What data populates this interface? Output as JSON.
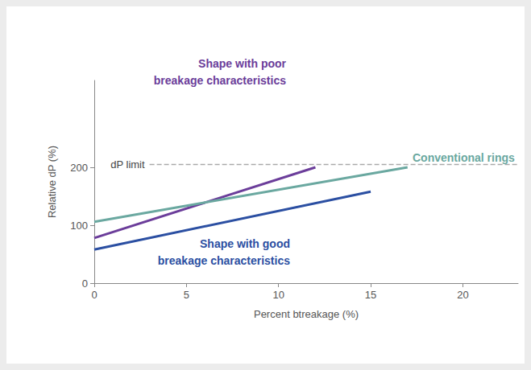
{
  "chart_data": {
    "type": "line",
    "x_label": "Percent btreakage (%)",
    "y_label": "Relative dP (%)",
    "xlim": [
      0,
      23
    ],
    "xticks": [
      0,
      5,
      10,
      15,
      20
    ],
    "ylim": [
      0,
      350
    ],
    "yticks": [
      0,
      100,
      200
    ],
    "grid": false,
    "series": [
      {
        "name": "Shape with poor breakage characteristics",
        "color": "#6b3d9a",
        "line_style": "solid",
        "x": [
          0,
          12
        ],
        "values": [
          78,
          200
        ]
      },
      {
        "name": "Conventional rings",
        "color": "#6aa8a0",
        "line_style": "solid",
        "x": [
          0,
          17
        ],
        "values": [
          106,
          200
        ]
      },
      {
        "name": "Shape with good breakage characteristics",
        "color": "#2b4fa2",
        "line_style": "solid",
        "x": [
          0,
          15
        ],
        "values": [
          58,
          158
        ]
      },
      {
        "name": "dP limit",
        "color": "#aaaaaa",
        "line_style": "dashed",
        "x": [
          3,
          23
        ],
        "values": [
          205,
          205
        ]
      }
    ]
  }
}
